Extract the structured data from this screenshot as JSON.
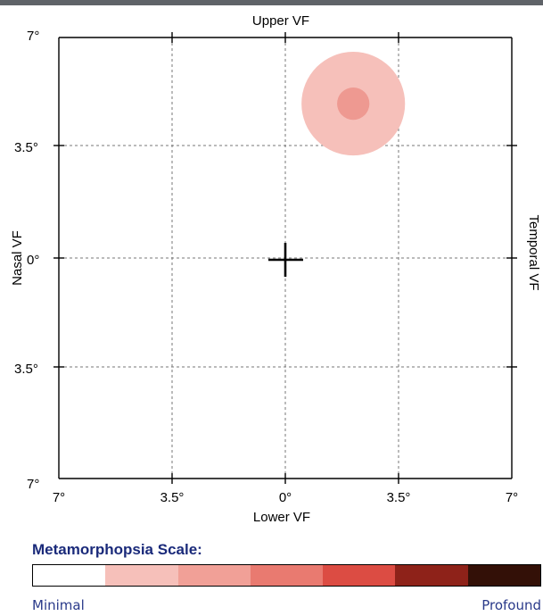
{
  "chart": {
    "labels": {
      "top": "Upper VF",
      "bottom": "Lower VF",
      "left": "Nasal VF",
      "right": "Temporal VF"
    },
    "y_ticks": [
      "7°",
      "3.5°",
      "0°",
      "3.5°",
      "7°"
    ],
    "x_ticks": [
      "7°",
      "3.5°",
      "0°",
      "3.5°",
      "7°"
    ],
    "fixation_marker": "crosshair-plus",
    "grid": "dashed",
    "lesion": {
      "x_deg": 2.1,
      "y_deg": 4.9,
      "outer_radius_deg": 1.6,
      "inner_radius_deg": 0.5,
      "outer_color": "#f6c0ba",
      "inner_color": "#ee9991"
    }
  },
  "scale": {
    "title": "Metamorphopsia Scale:",
    "min_label": "Minimal",
    "max_label": "Profound",
    "colors": [
      "#ffffff",
      "#f6c0ba",
      "#f1a097",
      "#e97a70",
      "#dc4c43",
      "#8e2219",
      "#331007"
    ]
  }
}
